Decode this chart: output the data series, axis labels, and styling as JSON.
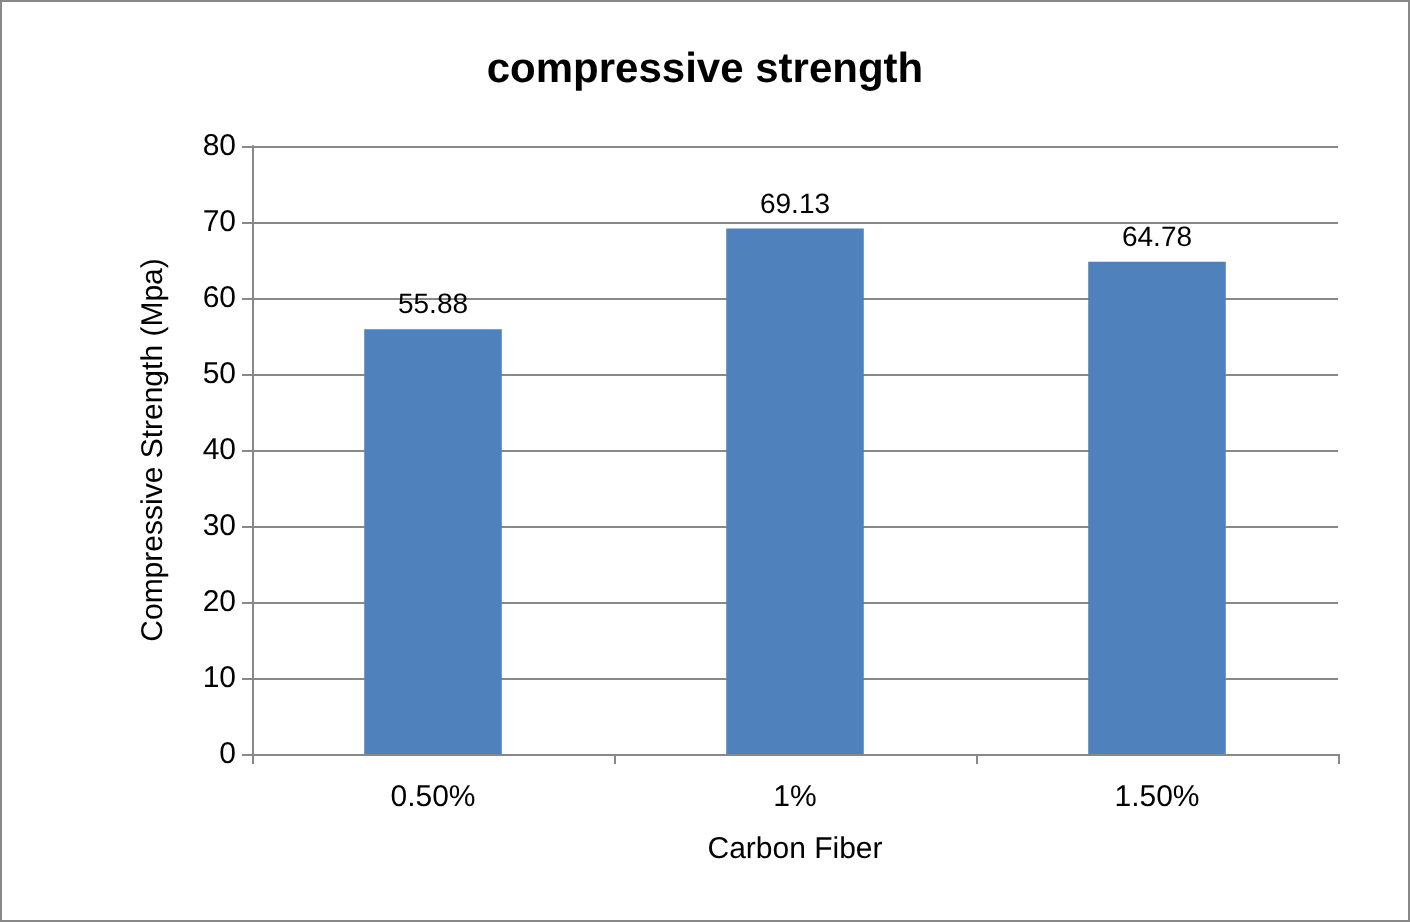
{
  "chart_data": {
    "type": "bar",
    "title": "compressive strength",
    "xlabel": "Carbon Fiber",
    "ylabel": "Compressive Strength (Mpa)",
    "categories": [
      "0.50%",
      "1%",
      "1.50%"
    ],
    "values": [
      55.88,
      69.13,
      64.78
    ],
    "color": "#4f81bd",
    "ylim": [
      0,
      80
    ],
    "yticks": [
      0,
      10,
      20,
      30,
      40,
      50,
      60,
      70,
      80
    ],
    "grid": "y",
    "data_labels": true
  }
}
